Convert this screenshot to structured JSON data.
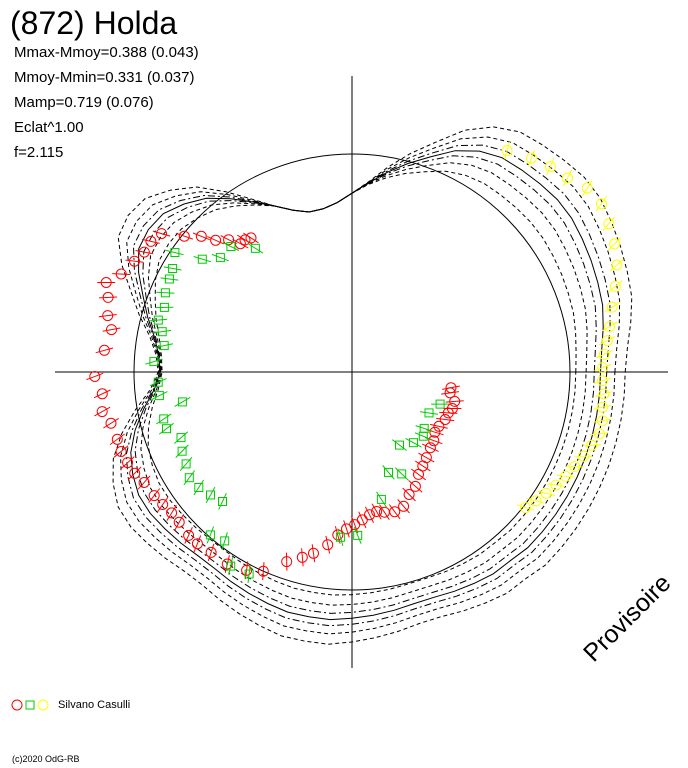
{
  "title": "(872) Holda",
  "stats": [
    "Mmax-Mmoy=0.388 (0.043)",
    "Mmoy-Mmin=0.331 (0.037)",
    "Mamp=0.719 (0.076)",
    "Eclat^1.00",
    "f=2.115"
  ],
  "stamp": "Provisoire",
  "legend": {
    "observer": "Silvano Casulli"
  },
  "copyright": "(c)2020 OdG-RB",
  "colors": {
    "red": "#ff0000",
    "green": "#00cc00",
    "yellow": "#ffff00",
    "curve": "#000000"
  },
  "chart_data": {
    "type": "scatter",
    "title": "(872) Holda",
    "projection": "polar",
    "angle_unit": "rotation phase (degrees)",
    "radius_unit": "relative magnitude",
    "reference_circle_radius": 1.0,
    "model_curve_radius": [
      1.14,
      1.15,
      1.17,
      1.19,
      1.2,
      1.21,
      1.22,
      1.23,
      1.23,
      1.22,
      1.21,
      1.2,
      1.17,
      1.12,
      1.05,
      0.99,
      0.93,
      0.87,
      0.82,
      0.78,
      0.76,
      0.76,
      0.79,
      0.84,
      0.9,
      0.97,
      1.04,
      1.09,
      1.13,
      1.14,
      1.13,
      1.08,
      1.02,
      0.97,
      0.92,
      0.89,
      0.88,
      0.91,
      0.97,
      1.03,
      1.08,
      1.11,
      1.13,
      1.13,
      1.12,
      1.11,
      1.1,
      1.1,
      1.11,
      1.12,
      1.13,
      1.14,
      1.14,
      1.14,
      1.13,
      1.12,
      1.11,
      1.1,
      1.1,
      1.11,
      1.12,
      1.13,
      1.13,
      1.14,
      1.14,
      1.14,
      1.14,
      1.14,
      1.14,
      1.14,
      1.14,
      1.14
    ],
    "model_curve_step_deg": 5,
    "series": [
      {
        "name": "",
        "marker": "circle",
        "color": "red",
        "points": [
          [
            175,
            1.14
          ],
          [
            170,
            1.12
          ],
          [
            167,
            1.15
          ],
          [
            163,
            1.17
          ],
          [
            160,
            1.2
          ],
          [
            157,
            1.15
          ],
          [
            153,
            1.12
          ],
          [
            150,
            1.1
          ],
          [
            147,
            1.1
          ],
          [
            144,
            1.08
          ],
          [
            141,
            0.99
          ],
          [
            138,
            0.93
          ],
          [
            136,
            0.87
          ],
          [
            133,
            0.83
          ],
          [
            131,
            0.78
          ],
          [
            129,
            0.78
          ],
          [
            127,
            0.77
          ],
          [
            181,
            1.18
          ],
          [
            185,
            1.15
          ],
          [
            189,
            1.16
          ],
          [
            192,
            1.13
          ],
          [
            196,
            1.12
          ],
          [
            199,
            1.12
          ],
          [
            202,
            1.11
          ],
          [
            205,
            1.1
          ],
          [
            208,
            1.08
          ],
          [
            212,
            1.07
          ],
          [
            215,
            1.06
          ],
          [
            218,
            1.05
          ],
          [
            221,
            1.05
          ],
          [
            225,
            1.06
          ],
          [
            228,
            1.06
          ],
          [
            232,
            1.05
          ],
          [
            237,
            1.05
          ],
          [
            242,
            1.03
          ],
          [
            246,
            1.0
          ],
          [
            251,
            0.92
          ],
          [
            255,
            0.88
          ],
          [
            258,
            0.85
          ],
          [
            262,
            0.8
          ],
          [
            265,
            0.75
          ],
          [
            268,
            0.72
          ],
          [
            271,
            0.7
          ],
          [
            274,
            0.68
          ],
          [
            277,
            0.66
          ],
          [
            280,
            0.65
          ],
          [
            283,
            0.66
          ],
          [
            287,
            0.67
          ],
          [
            291,
            0.66
          ],
          [
            295,
            0.62
          ],
          [
            299,
            0.6
          ],
          [
            303,
            0.56
          ],
          [
            307,
            0.54
          ],
          [
            311,
            0.52
          ],
          [
            316,
            0.5
          ],
          [
            320,
            0.49
          ],
          [
            324,
            0.47
          ],
          [
            328,
            0.47
          ],
          [
            333,
            0.48
          ],
          [
            337,
            0.48
          ],
          [
            340,
            0.49
          ],
          [
            344,
            0.49
          ],
          [
            348,
            0.46
          ],
          [
            351,
            0.46
          ]
        ]
      },
      {
        "name": "",
        "marker": "square",
        "color": "green",
        "points": [
          [
            177,
            0.91
          ],
          [
            172,
            0.87
          ],
          [
            168,
            0.89
          ],
          [
            165,
            0.92
          ],
          [
            161,
            0.91
          ],
          [
            157,
            0.93
          ],
          [
            153,
            0.94
          ],
          [
            150,
            0.95
          ],
          [
            146,
            0.98
          ],
          [
            143,
            0.86
          ],
          [
            139,
            0.8
          ],
          [
            134,
            0.8
          ],
          [
            128,
            0.72
          ],
          [
            183,
            0.89
          ],
          [
            187,
            0.89
          ],
          [
            190,
            0.79
          ],
          [
            194,
            0.89
          ],
          [
            197,
            0.89
          ],
          [
            201,
            0.84
          ],
          [
            205,
            0.86
          ],
          [
            209,
            0.87
          ],
          [
            213,
            0.89
          ],
          [
            217,
            0.88
          ],
          [
            221,
            0.86
          ],
          [
            225,
            0.84
          ],
          [
            229,
            0.99
          ],
          [
            233,
            0.97
          ],
          [
            238,
            1.05
          ],
          [
            243,
            1.04
          ],
          [
            266,
            0.76
          ],
          [
            272,
            0.75
          ],
          [
            283,
            0.6
          ],
          [
            290,
            0.49
          ],
          [
            296,
            0.52
          ],
          [
            303,
            0.4
          ],
          [
            311,
            0.43
          ],
          [
            318,
            0.44
          ],
          [
            322,
            0.42
          ],
          [
            332,
            0.4
          ],
          [
            340,
            0.43
          ]
        ]
      },
      {
        "name": "",
        "marker": "circle",
        "color": "yellow",
        "points": [
          [
            55,
            1.24
          ],
          [
            50,
            1.28
          ],
          [
            46,
            1.31
          ],
          [
            42,
            1.33
          ],
          [
            38,
            1.37
          ],
          [
            34,
            1.38
          ],
          [
            30,
            1.36
          ],
          [
            26,
            1.34
          ],
          [
            22,
            1.31
          ],
          [
            18,
            1.27
          ],
          [
            14,
            1.23
          ],
          [
            10,
            1.2
          ],
          [
            7,
            1.18
          ],
          [
            4,
            1.16
          ],
          [
            1,
            1.15
          ],
          [
            358,
            1.15
          ],
          [
            355,
            1.16
          ],
          [
            352,
            1.16
          ],
          [
            349,
            1.17
          ],
          [
            346,
            1.17
          ],
          [
            343,
            1.15
          ],
          [
            340,
            1.13
          ],
          [
            337,
            1.11
          ],
          [
            334,
            1.09
          ],
          [
            331,
            1.07
          ],
          [
            328,
            1.05
          ],
          [
            325,
            1.03
          ],
          [
            322,
            1.01
          ]
        ]
      }
    ]
  }
}
